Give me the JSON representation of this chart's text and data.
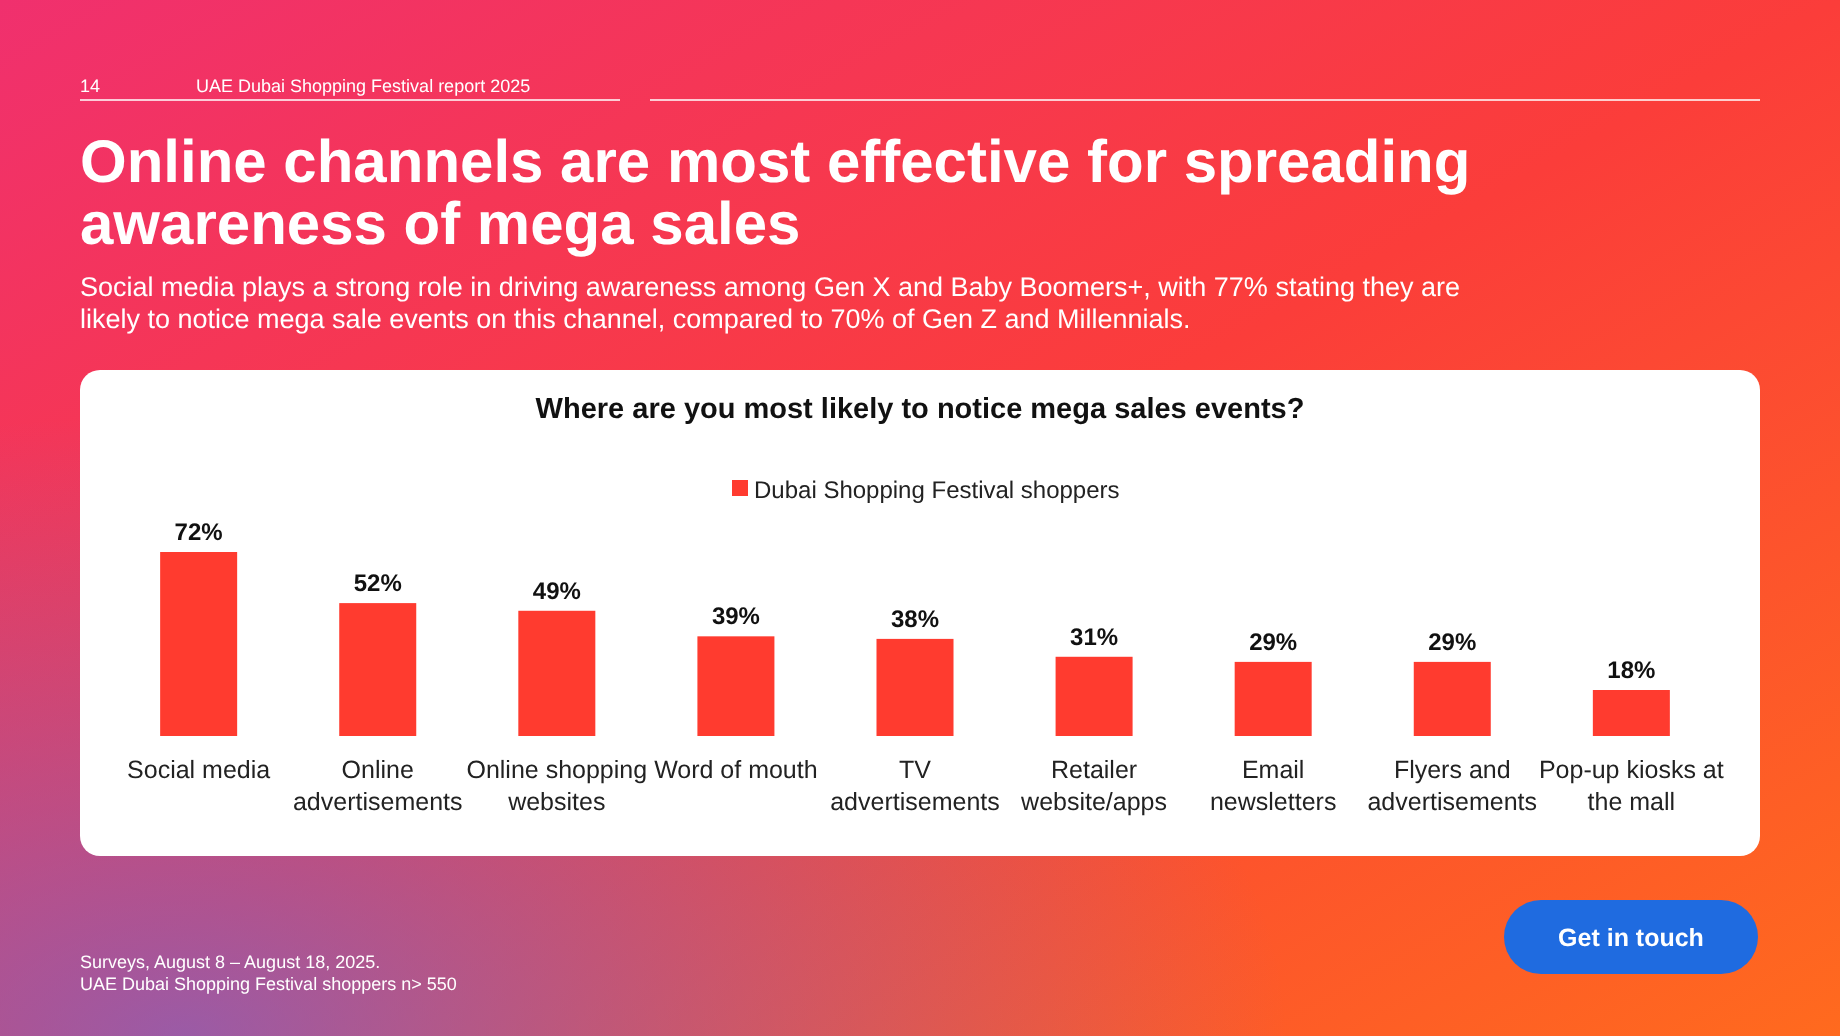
{
  "chart_data": {
    "type": "bar",
    "title": "Online channels are most effective for spreading awareness of mega sales",
    "subtitle": "Social media plays a strong role in driving awareness among Gen X and Baby Boomers+, with 77% stating they are likely to notice mega sale events on this channel, compared to 70% of Gen Z and Millennials.",
    "annotations": [
      "14",
      "UAE Dubai Shopping Festival report 2025",
      "Where are you most likely to notice mega sales events?",
      "Surveys, August 8 – August 18, 2025.",
      "UAE Dubai Shopping Festival shoppers n> 550",
      "Get in touch"
    ],
    "categories": [
      "Social media",
      "Online advertisements",
      "Online shopping websites",
      "Word of mouth",
      "TV advertisements",
      "Retailer website/apps",
      "Email newsletters",
      "Flyers and advertisements",
      "Pop-up kiosks at the mall"
    ],
    "series": [
      {
        "name": "Dubai Shopping Festival shoppers",
        "color": "#ff3b2f",
        "values": [
          72,
          52,
          49,
          39,
          38,
          31,
          29,
          29,
          18
        ],
        "value_labels": [
          "72%",
          "52%",
          "49%",
          "39%",
          "38%",
          "31%",
          "29%",
          "29%",
          "18%"
        ]
      }
    ],
    "legend": "top"
  }
}
